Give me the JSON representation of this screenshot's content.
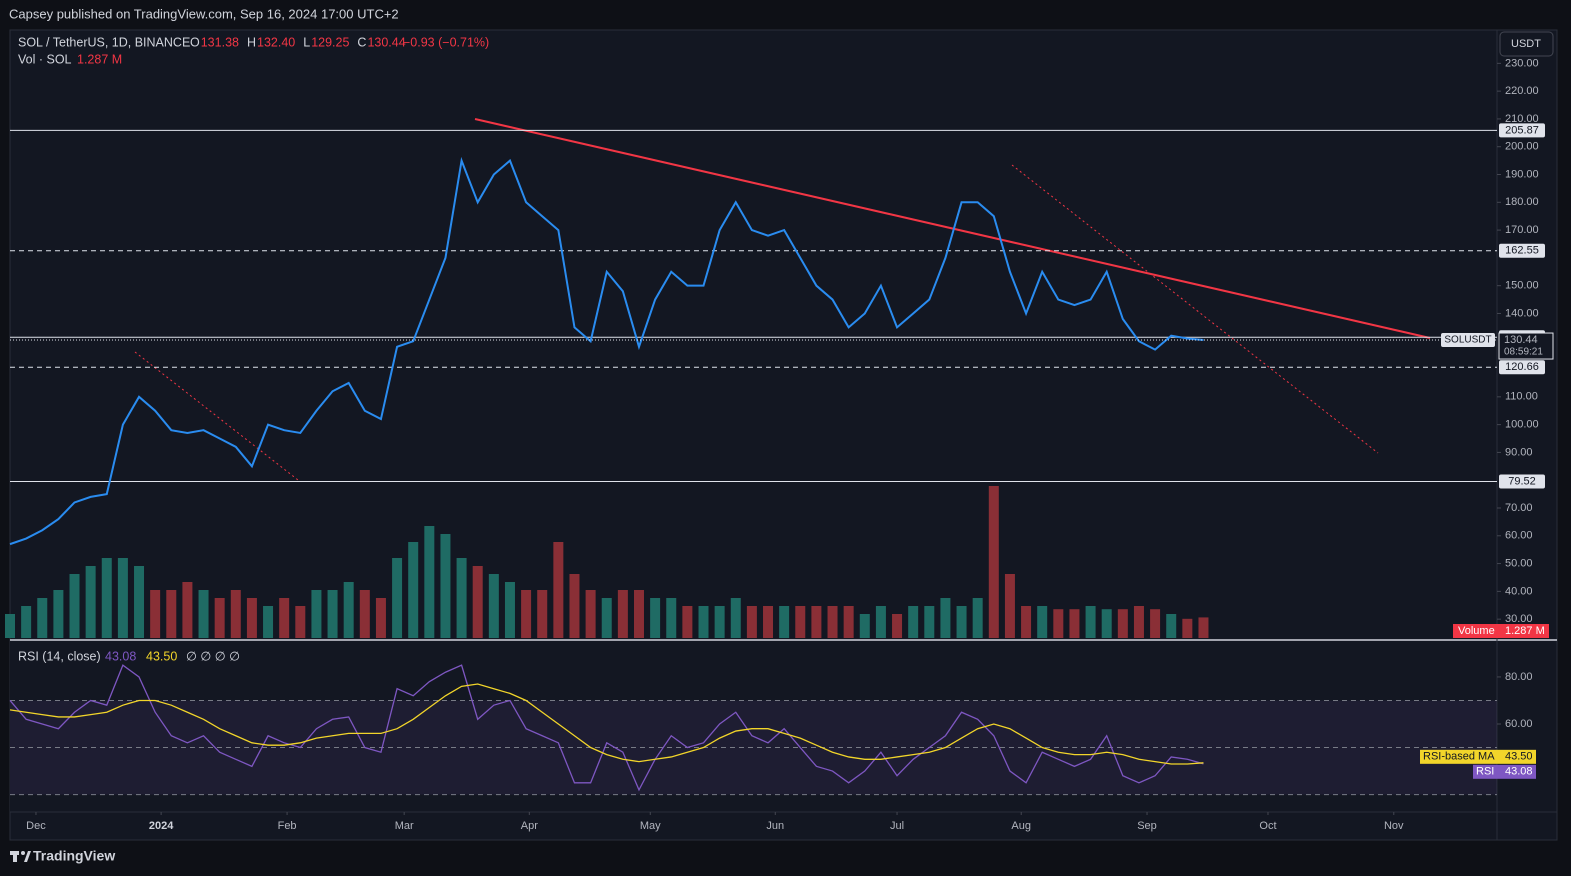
{
  "header": {
    "published": "Capsey published on TradingView.com, Sep 16, 2024 17:00 UTC+2",
    "footer": "TradingView"
  },
  "chart_data": {
    "type": "line",
    "title": "SOL / TetherUS, 1D, BINANCE",
    "ohlc": [
      {
        "key": "O",
        "value": "131.38"
      },
      {
        "key": "H",
        "value": "132.40"
      },
      {
        "key": "L",
        "value": "129.25"
      },
      {
        "key": "C",
        "value": "130.44"
      }
    ],
    "change": "−0.93 (−0.71%)",
    "volume_title": "Vol · SOL",
    "volume_text": "1.287 M",
    "currency": "USDT",
    "symbol": "SOLUSDT",
    "countdown": "08:59:21",
    "xlim": [
      0,
      92.2
    ],
    "xticks": [
      {
        "value": 1.61,
        "label": "Dec"
      },
      {
        "value": 9.37,
        "label": "2024"
      },
      {
        "value": 17.18,
        "label": "Feb"
      },
      {
        "value": 24.44,
        "label": "Mar"
      },
      {
        "value": 32.2,
        "label": "Apr"
      },
      {
        "value": 39.7,
        "label": "May"
      },
      {
        "value": 47.45,
        "label": "Jun"
      },
      {
        "value": 55.0,
        "label": "Jul"
      },
      {
        "value": 62.7,
        "label": "Aug"
      },
      {
        "value": 70.5,
        "label": "Sep"
      },
      {
        "value": 78.0,
        "label": "Oct"
      },
      {
        "value": 85.8,
        "label": "Nov"
      }
    ],
    "ylim": [
      22.5,
      242
    ],
    "yticks": [
      {
        "value": 30,
        "label": "30.00"
      },
      {
        "value": 40,
        "label": "40.00"
      },
      {
        "value": 50,
        "label": "50.00"
      },
      {
        "value": 60,
        "label": "60.00"
      },
      {
        "value": 70,
        "label": "70.00"
      },
      {
        "value": 90,
        "label": "90.00"
      },
      {
        "value": 100,
        "label": "100.00"
      },
      {
        "value": 110,
        "label": "110.00"
      },
      {
        "value": 140,
        "label": "140.00"
      },
      {
        "value": 150,
        "label": "150.00"
      },
      {
        "value": 170,
        "label": "170.00"
      },
      {
        "value": 180,
        "label": "180.00"
      },
      {
        "value": 190,
        "label": "190.00"
      },
      {
        "value": 200,
        "label": "200.00"
      },
      {
        "value": 210,
        "label": "210.00"
      },
      {
        "value": 220,
        "label": "220.00"
      },
      {
        "value": 230,
        "label": "230.00"
      }
    ],
    "series": [
      {
        "name": "SOLUSDT",
        "color": "#2a8cf0",
        "values": [
          57,
          59,
          62,
          66,
          72,
          74,
          75,
          100,
          110,
          105,
          98,
          97,
          98,
          95,
          92,
          85,
          100,
          98,
          97,
          105,
          112,
          115,
          105,
          102,
          128,
          130,
          145,
          160,
          195,
          180,
          190,
          195,
          180,
          175,
          170,
          135,
          130,
          155,
          148,
          128,
          145,
          155,
          150,
          150,
          170,
          180,
          170,
          168,
          170,
          160,
          150,
          145,
          135,
          140,
          150,
          135,
          140,
          145,
          160,
          180,
          180,
          175,
          155,
          140,
          155,
          145,
          143,
          145,
          155,
          138,
          130,
          127,
          132,
          131,
          130.44
        ]
      }
    ],
    "levels": [
      {
        "value": 205.87,
        "style": "solid"
      },
      {
        "value": 162.55,
        "style": "dashed"
      },
      {
        "value": 131.44,
        "style": "solid"
      },
      {
        "value": 120.66,
        "style": "dashed"
      },
      {
        "value": 79.52,
        "style": "solid"
      }
    ],
    "volume": {
      "name": "Volume",
      "ylim": [
        0,
        10
      ],
      "up_color": "#1f6b64",
      "down_color": "#8a2f36",
      "values": [
        1.5,
        2,
        2.5,
        3,
        4,
        4.5,
        5,
        5,
        4.5,
        3,
        3,
        3.5,
        3,
        2.5,
        3,
        2.5,
        2,
        2.5,
        2,
        3,
        3,
        3.5,
        3,
        2.5,
        5,
        6,
        7,
        6.5,
        5,
        4.5,
        4,
        3.5,
        3,
        3,
        6,
        4,
        3,
        2.5,
        3,
        3,
        2.5,
        2.5,
        2,
        2,
        2,
        2.5,
        2,
        2,
        2,
        2,
        2,
        2,
        2,
        1.5,
        2,
        1.5,
        2,
        2,
        2.5,
        2,
        2.5,
        9.5,
        4,
        2,
        2,
        1.8,
        1.8,
        2,
        1.8,
        1.8,
        2,
        1.8,
        1.5,
        1.2,
        1.287
      ]
    },
    "rsi": {
      "title": "RSI (14, close)",
      "icons": "∅ ∅ ∅ ∅",
      "ylim": [
        22.6,
        95.7
      ],
      "yticks": [
        {
          "value": 80,
          "label": "80.00"
        },
        {
          "value": 60,
          "label": "60.00"
        }
      ],
      "bands": [
        70,
        50,
        30
      ],
      "series": [
        {
          "name": "RSI",
          "color": "#7e57c2",
          "value_label": "43.08",
          "values": [
            70,
            62,
            60,
            58,
            65,
            70,
            68,
            85,
            80,
            65,
            55,
            52,
            55,
            48,
            45,
            42,
            55,
            52,
            50,
            58,
            62,
            63,
            50,
            48,
            75,
            72,
            78,
            82,
            85,
            62,
            68,
            70,
            58,
            55,
            52,
            35,
            35,
            52,
            48,
            32,
            45,
            55,
            50,
            52,
            60,
            65,
            55,
            52,
            58,
            50,
            42,
            40,
            35,
            40,
            48,
            38,
            45,
            50,
            55,
            65,
            62,
            55,
            40,
            35,
            48,
            45,
            42,
            45,
            55,
            38,
            35,
            38,
            46,
            45,
            43.08
          ]
        },
        {
          "name": "RSI-based MA",
          "color": "#f2d52a",
          "value_label": "43.50",
          "values": [
            66,
            65,
            64,
            63,
            63,
            64,
            65,
            68,
            70,
            70,
            68,
            65,
            62,
            58,
            55,
            52,
            51,
            51,
            52,
            54,
            55,
            56,
            56,
            56,
            58,
            62,
            67,
            72,
            76,
            77,
            75,
            73,
            70,
            65,
            60,
            55,
            50,
            47,
            45,
            44,
            45,
            46,
            48,
            50,
            54,
            57,
            58,
            58,
            56,
            54,
            51,
            48,
            46,
            45,
            45,
            46,
            47,
            48,
            50,
            54,
            58,
            60,
            58,
            54,
            50,
            48,
            47,
            47,
            48,
            47,
            45,
            44,
            43,
            43,
            43.5
          ]
        }
      ]
    }
  }
}
